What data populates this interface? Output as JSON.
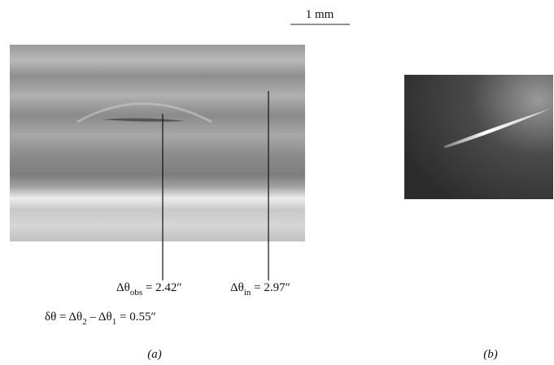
{
  "scale_bar": {
    "label": "1 mm"
  },
  "panel_a": {
    "annotations": [
      {
        "symbol": "Δθ",
        "subscript": "obs",
        "rest": " = 2.42″"
      },
      {
        "symbol": "Δθ",
        "subscript": "in",
        "rest": " = 2.97″"
      }
    ],
    "equation": [
      {
        "text": "δθ = Δθ"
      },
      {
        "sub": "2"
      },
      {
        "text": " – Δθ"
      },
      {
        "sub": "1"
      },
      {
        "text": " = 0.55″"
      }
    ],
    "label": "(a)"
  },
  "panel_b": {
    "label": "(b)"
  }
}
